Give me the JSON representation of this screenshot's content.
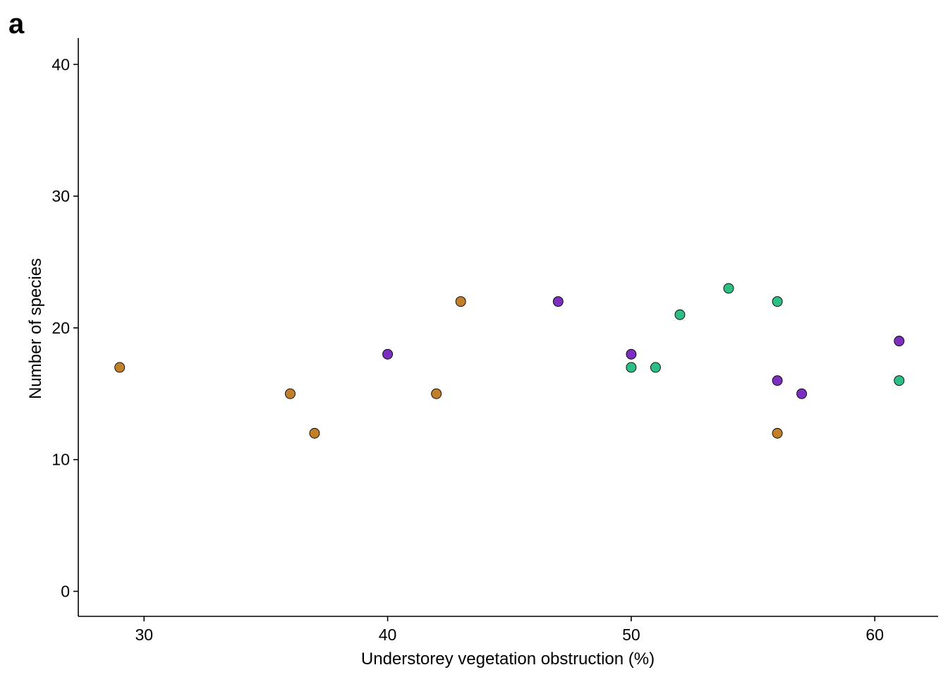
{
  "panel_label": "a",
  "chart_data": {
    "type": "scatter",
    "title": "",
    "xlabel": "Understorey vegetation obstruction (%)",
    "ylabel": "Number of species",
    "xlim": [
      27.3,
      62.6
    ],
    "ylim": [
      -1.9,
      42
    ],
    "x_ticks": [
      30,
      40,
      50,
      60
    ],
    "y_ticks": [
      0,
      10,
      20,
      30,
      40
    ],
    "grid": false,
    "legend": "none",
    "marker_outline": "#000000",
    "series": [
      {
        "color": "#C17F2A",
        "points": [
          {
            "x": 29,
            "y": 17
          },
          {
            "x": 36,
            "y": 15
          },
          {
            "x": 37,
            "y": 12
          },
          {
            "x": 42,
            "y": 15
          },
          {
            "x": 43,
            "y": 22
          },
          {
            "x": 56,
            "y": 12
          }
        ]
      },
      {
        "color": "#7B2FBE",
        "points": [
          {
            "x": 40,
            "y": 18
          },
          {
            "x": 47,
            "y": 22
          },
          {
            "x": 50,
            "y": 18
          },
          {
            "x": 56,
            "y": 16
          },
          {
            "x": 57,
            "y": 15
          },
          {
            "x": 61,
            "y": 19
          }
        ]
      },
      {
        "color": "#2DBE85",
        "points": [
          {
            "x": 50,
            "y": 17
          },
          {
            "x": 51,
            "y": 17
          },
          {
            "x": 52,
            "y": 21
          },
          {
            "x": 54,
            "y": 23
          },
          {
            "x": 56,
            "y": 22
          },
          {
            "x": 61,
            "y": 16
          }
        ]
      }
    ]
  }
}
